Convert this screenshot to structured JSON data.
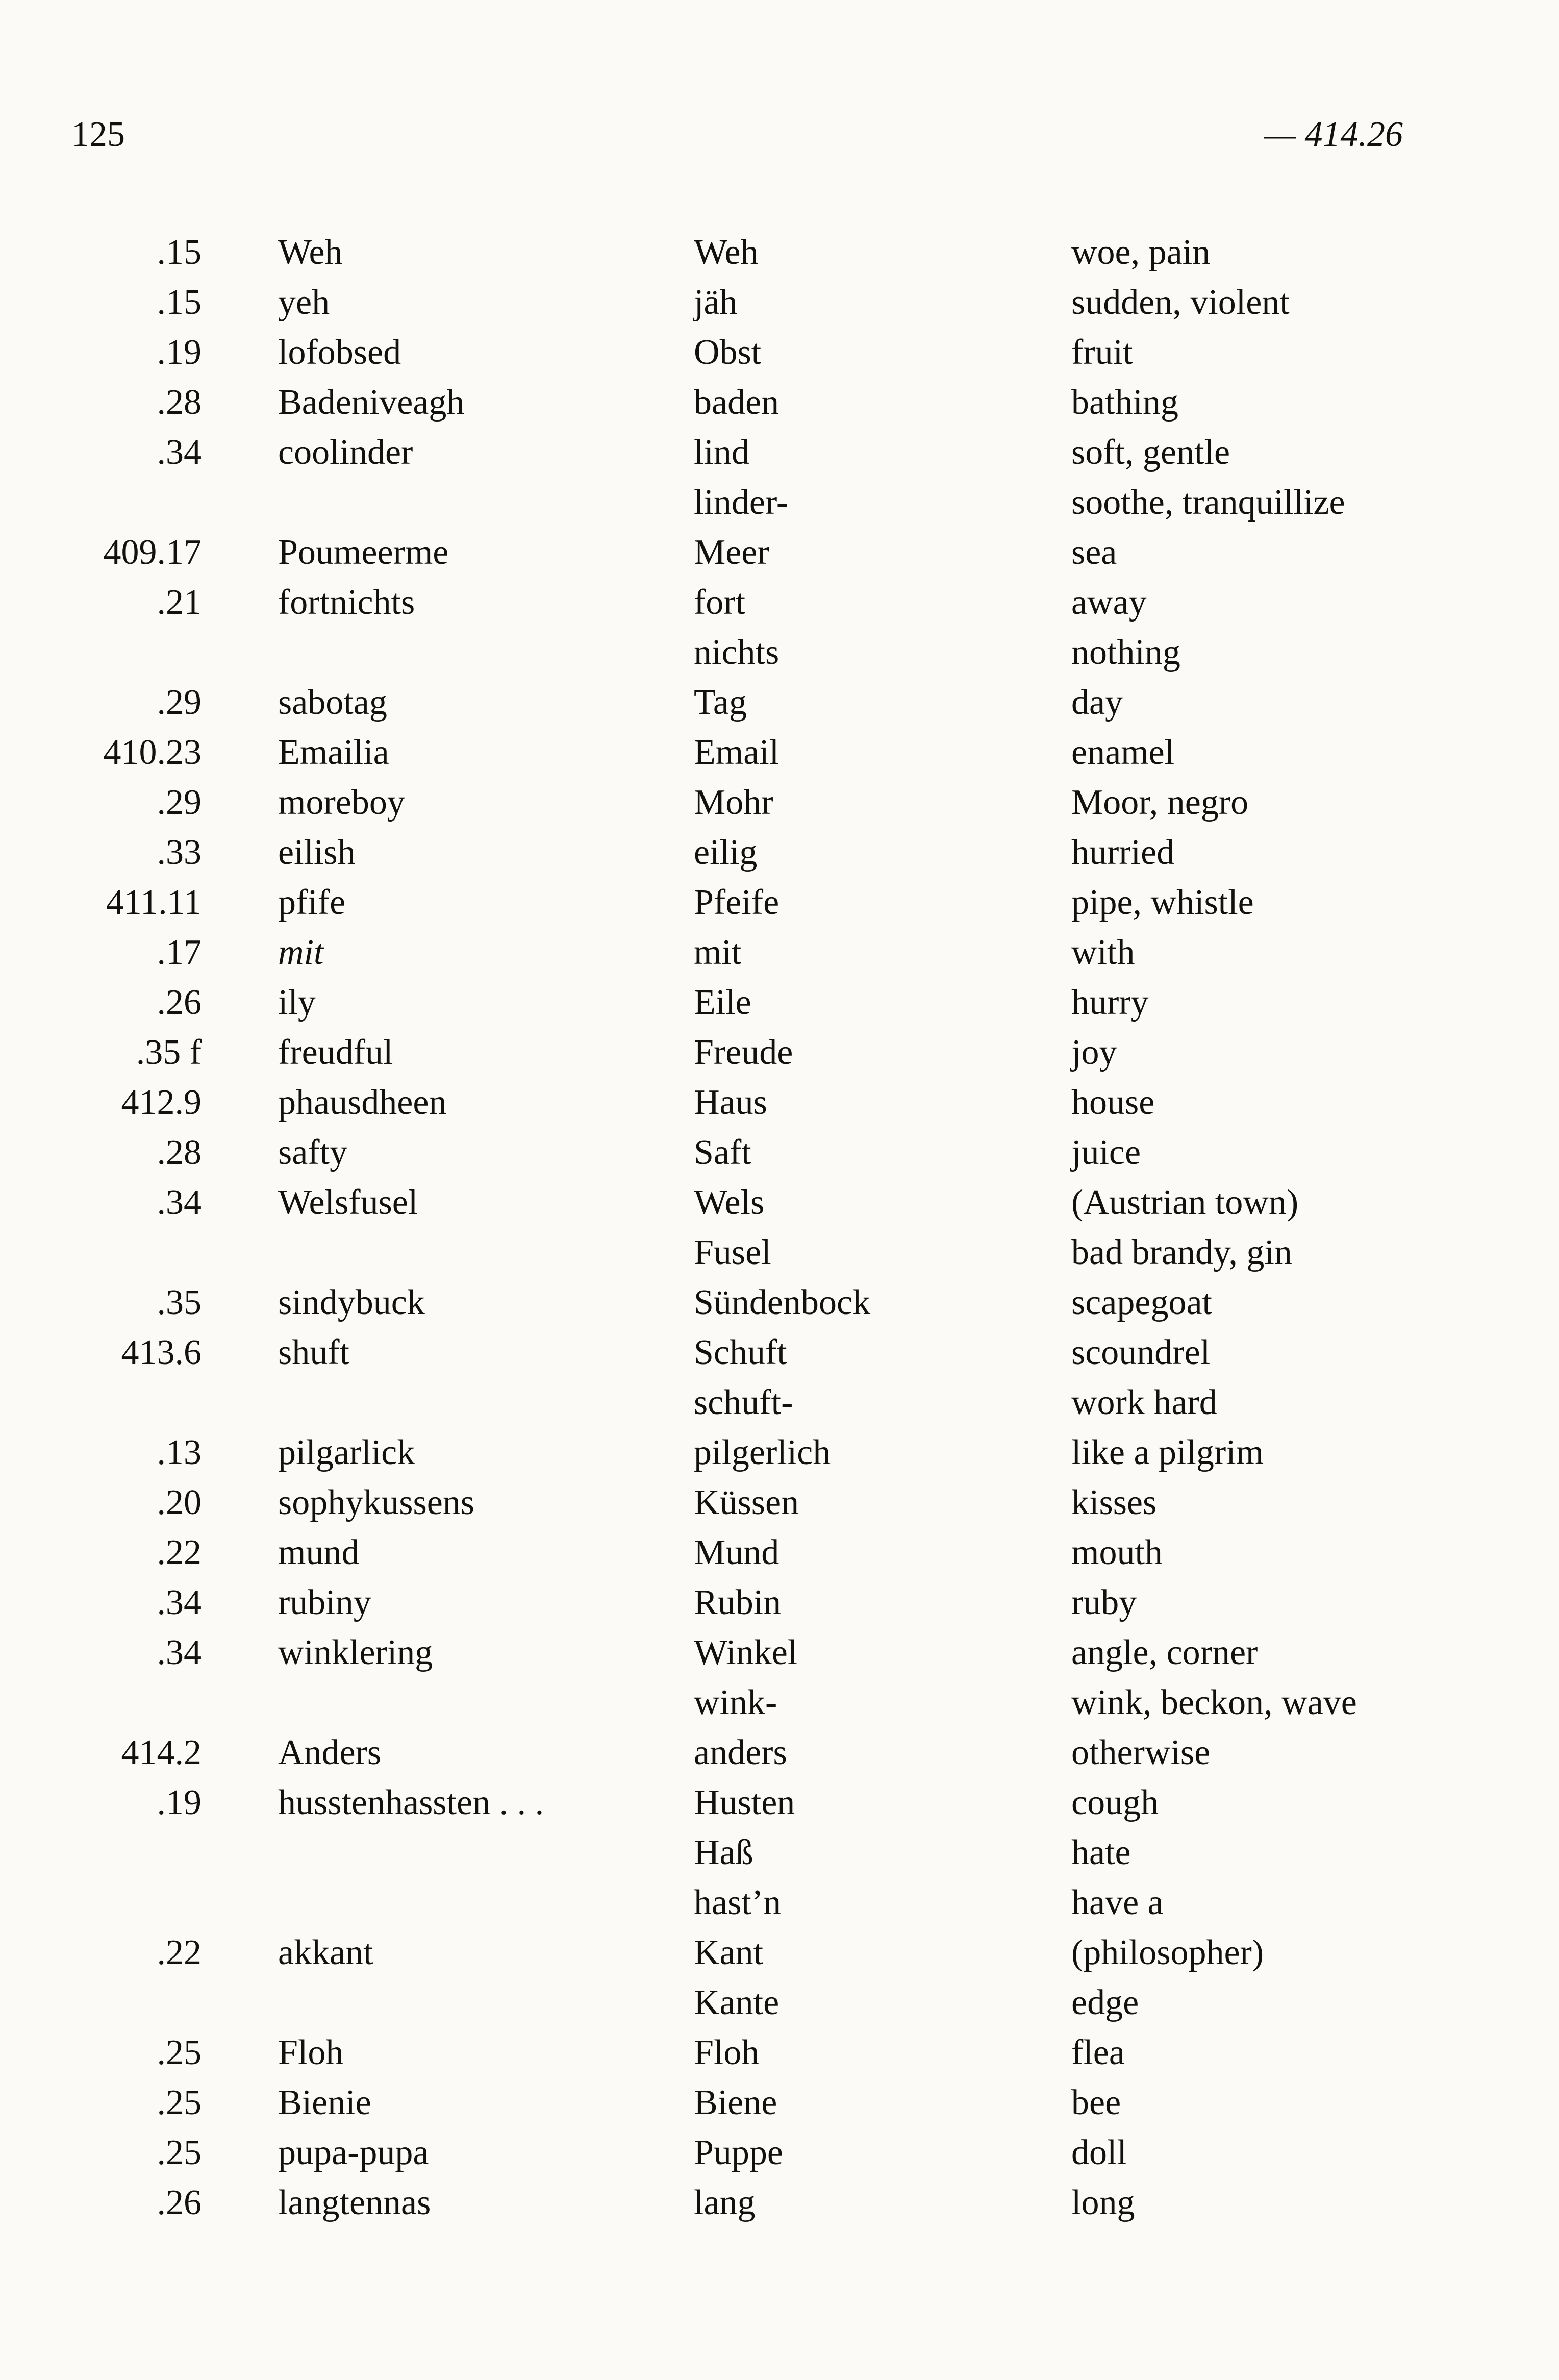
{
  "page": {
    "number": "125",
    "header_ref": "— 414.26"
  },
  "entries": [
    {
      "ref": ".15",
      "word": "Weh",
      "glosses": [
        {
          "german": "Weh",
          "english": "woe, pain"
        }
      ]
    },
    {
      "ref": ".15",
      "word": "yeh",
      "glosses": [
        {
          "german": "jäh",
          "english": "sudden, violent"
        }
      ]
    },
    {
      "ref": ".19",
      "word": "lofobsed",
      "glosses": [
        {
          "german": "Obst",
          "english": "fruit"
        }
      ]
    },
    {
      "ref": ".28",
      "word": "Badeniveagh",
      "glosses": [
        {
          "german": "baden",
          "english": "bathing"
        }
      ]
    },
    {
      "ref": ".34",
      "word": "coolinder",
      "glosses": [
        {
          "german": "lind",
          "english": "soft, gentle"
        },
        {
          "german": "linder-",
          "english": "soothe, tranquillize"
        }
      ]
    },
    {
      "ref": "409.17",
      "word": "Poumeerme",
      "glosses": [
        {
          "german": "Meer",
          "english": "sea"
        }
      ]
    },
    {
      "ref": ".21",
      "word": "fortnichts",
      "glosses": [
        {
          "german": "fort",
          "english": "away"
        },
        {
          "german": "nichts",
          "english": "nothing"
        }
      ]
    },
    {
      "ref": ".29",
      "word": "sabotag",
      "glosses": [
        {
          "german": "Tag",
          "english": "day"
        }
      ]
    },
    {
      "ref": "410.23",
      "word": "Emailia",
      "glosses": [
        {
          "german": "Email",
          "english": "enamel"
        }
      ]
    },
    {
      "ref": ".29",
      "word": "moreboy",
      "glosses": [
        {
          "german": "Mohr",
          "english": "Moor, negro"
        }
      ]
    },
    {
      "ref": ".33",
      "word": "eilish",
      "glosses": [
        {
          "german": "eilig",
          "english": "hurried"
        }
      ]
    },
    {
      "ref": "411.11",
      "word": "pfife",
      "glosses": [
        {
          "german": "Pfeife",
          "english": "pipe, whistle"
        }
      ]
    },
    {
      "ref": ".17",
      "word": "mit",
      "word_italic": true,
      "glosses": [
        {
          "german": "mit",
          "english": "with"
        }
      ]
    },
    {
      "ref": ".26",
      "word": "ily",
      "glosses": [
        {
          "german": "Eile",
          "english": "hurry"
        }
      ]
    },
    {
      "ref": ".35 f",
      "word": "freudful",
      "glosses": [
        {
          "german": "Freude",
          "english": "joy"
        }
      ]
    },
    {
      "ref": "412.9",
      "word": "phausdheen",
      "glosses": [
        {
          "german": "Haus",
          "english": "house"
        }
      ]
    },
    {
      "ref": ".28",
      "word": "safty",
      "glosses": [
        {
          "german": "Saft",
          "english": "juice"
        }
      ]
    },
    {
      "ref": ".34",
      "word": "Welsfusel",
      "glosses": [
        {
          "german": "Wels",
          "english": "(Austrian town)"
        },
        {
          "german": "Fusel",
          "english": "bad brandy, gin"
        }
      ]
    },
    {
      "ref": ".35",
      "word": "sindybuck",
      "glosses": [
        {
          "german": "Sündenbock",
          "english": "scapegoat"
        }
      ]
    },
    {
      "ref": "413.6",
      "word": "shuft",
      "glosses": [
        {
          "german": "Schuft",
          "english": "scoundrel"
        },
        {
          "german": "schuft-",
          "english": "work hard"
        }
      ]
    },
    {
      "ref": ".13",
      "word": "pilgarlick",
      "glosses": [
        {
          "german": "pilgerlich",
          "english": "like a pilgrim"
        }
      ]
    },
    {
      "ref": ".20",
      "word": "sophykussens",
      "glosses": [
        {
          "german": "Küssen",
          "english": "kisses"
        }
      ]
    },
    {
      "ref": ".22",
      "word": "mund",
      "glosses": [
        {
          "german": "Mund",
          "english": "mouth"
        }
      ]
    },
    {
      "ref": ".34",
      "word": "rubiny",
      "glosses": [
        {
          "german": "Rubin",
          "english": "ruby"
        }
      ]
    },
    {
      "ref": ".34",
      "word": "winklering",
      "glosses": [
        {
          "german": "Winkel",
          "english": "angle, corner"
        },
        {
          "german": "wink-",
          "english": "wink, beckon, wave"
        }
      ]
    },
    {
      "ref": "414.2",
      "word": "Anders",
      "glosses": [
        {
          "german": "anders",
          "english": "otherwise"
        }
      ]
    },
    {
      "ref": ".19",
      "word": "husstenhassten . . .",
      "glosses": [
        {
          "german": "Husten",
          "english": "cough"
        },
        {
          "german": "Haß",
          "english": "hate"
        },
        {
          "german": "hast’n",
          "english": "have a"
        }
      ]
    },
    {
      "ref": ".22",
      "word": "akkant",
      "glosses": [
        {
          "german": "Kant",
          "english": "(philosopher)"
        },
        {
          "german": "Kante",
          "english": "edge"
        }
      ]
    },
    {
      "ref": ".25",
      "word": "Floh",
      "glosses": [
        {
          "german": "Floh",
          "english": "flea"
        }
      ]
    },
    {
      "ref": ".25",
      "word": "Bienie",
      "glosses": [
        {
          "german": "Biene",
          "english": "bee"
        }
      ]
    },
    {
      "ref": ".25",
      "word": "pupa-pupa",
      "glosses": [
        {
          "german": "Puppe",
          "english": "doll"
        }
      ]
    },
    {
      "ref": ".26",
      "word": "langtennas",
      "glosses": [
        {
          "german": "lang",
          "english": "long"
        }
      ]
    }
  ]
}
